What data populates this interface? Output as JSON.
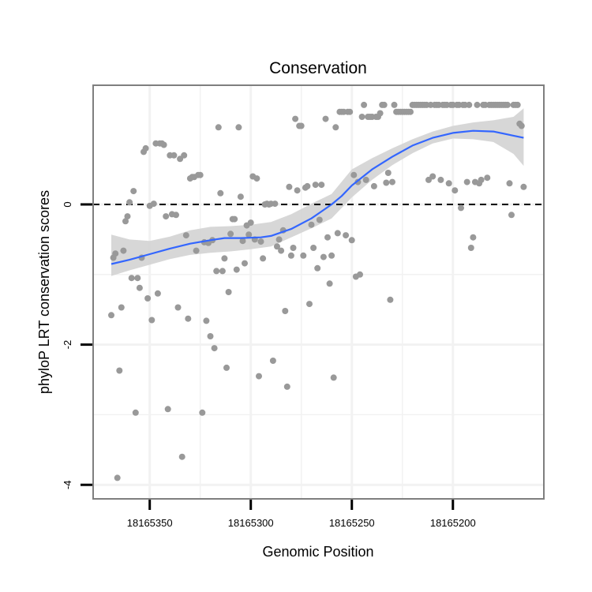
{
  "chart_data": {
    "type": "scatter",
    "title": "Conservation",
    "xlabel": "Genomic Position",
    "ylabel": "phyloP LRT conservation scores",
    "x_reversed": true,
    "xlim": [
      18165378,
      18165155
    ],
    "ylim": [
      -4.2,
      1.7
    ],
    "x_ticks": [
      18165350,
      18165300,
      18165250,
      18165200
    ],
    "x_tick_labels": [
      "18165350",
      "18165300",
      "18165250",
      "18165200"
    ],
    "y_ticks": [
      -4,
      -2,
      0
    ],
    "y_tick_labels": [
      "-4",
      "-2",
      "0"
    ],
    "reference_line": {
      "y": 0,
      "style": "dashed"
    },
    "grid": true,
    "colors": {
      "points": "#999999",
      "smooth_line": "#3366ff",
      "ribbon": "#d3d3d3",
      "panel_border": "#7f7f7f",
      "grid": "#f2f2f2"
    },
    "points": [
      [
        18165369,
        -1.58
      ],
      [
        18165368,
        -0.76
      ],
      [
        18165367,
        -0.7
      ],
      [
        18165366,
        -3.9
      ],
      [
        18165365,
        -2.37
      ],
      [
        18165364,
        -1.47
      ],
      [
        18165363,
        -0.66
      ],
      [
        18165362,
        -0.24
      ],
      [
        18165361,
        -0.17
      ],
      [
        18165360,
        0.03
      ],
      [
        18165359,
        -1.05
      ],
      [
        18165358,
        0.19
      ],
      [
        18165357,
        -2.97
      ],
      [
        18165356,
        -1.05
      ],
      [
        18165355,
        -1.19
      ],
      [
        18165354,
        -0.76
      ],
      [
        18165353,
        0.75
      ],
      [
        18165352,
        0.8
      ],
      [
        18165351,
        -1.34
      ],
      [
        18165350,
        -0.02
      ],
      [
        18165349,
        -1.65
      ],
      [
        18165348,
        0.01
      ],
      [
        18165347,
        0.87
      ],
      [
        18165346,
        -1.27
      ],
      [
        18165345,
        0.87
      ],
      [
        18165344,
        0.87
      ],
      [
        18165343,
        0.85
      ],
      [
        18165342,
        -0.17
      ],
      [
        18165341,
        -2.92
      ],
      [
        18165340,
        0.7
      ],
      [
        18165339,
        -0.14
      ],
      [
        18165338,
        0.7
      ],
      [
        18165337,
        -0.15
      ],
      [
        18165336,
        -1.47
      ],
      [
        18165335,
        0.65
      ],
      [
        18165334,
        -3.6
      ],
      [
        18165333,
        0.7
      ],
      [
        18165332,
        -0.44
      ],
      [
        18165331,
        -1.63
      ],
      [
        18165330,
        0.37
      ],
      [
        18165329,
        0.39
      ],
      [
        18165328,
        0.39
      ],
      [
        18165327,
        -0.66
      ],
      [
        18165326,
        0.42
      ],
      [
        18165325,
        0.42
      ],
      [
        18165324,
        -2.97
      ],
      [
        18165323,
        -0.54
      ],
      [
        18165322,
        -1.66
      ],
      [
        18165321,
        -0.55
      ],
      [
        18165320,
        -1.88
      ],
      [
        18165319,
        -0.51
      ],
      [
        18165318,
        -2.05
      ],
      [
        18165317,
        -0.95
      ],
      [
        18165316,
        1.1
      ],
      [
        18165315,
        0.16
      ],
      [
        18165314,
        -0.95
      ],
      [
        18165313,
        -0.77
      ],
      [
        18165312,
        -2.33
      ],
      [
        18165311,
        -1.25
      ],
      [
        18165310,
        -0.42
      ],
      [
        18165309,
        -0.21
      ],
      [
        18165308,
        -0.21
      ],
      [
        18165307,
        -0.93
      ],
      [
        18165306,
        1.1
      ],
      [
        18165305,
        0.11
      ],
      [
        18165304,
        -0.52
      ],
      [
        18165303,
        -0.84
      ],
      [
        18165302,
        -0.3
      ],
      [
        18165301,
        -0.43
      ],
      [
        18165300,
        -0.26
      ],
      [
        18165299,
        0.4
      ],
      [
        18165298,
        -0.5
      ],
      [
        18165297,
        0.37
      ],
      [
        18165296,
        -2.45
      ],
      [
        18165295,
        -0.53
      ],
      [
        18165294,
        -0.77
      ],
      [
        18165293,
        0
      ],
      [
        18165292,
        0.01
      ],
      [
        18165291,
        0.0
      ],
      [
        18165290,
        0.01
      ],
      [
        18165289,
        -2.23
      ],
      [
        18165288,
        0.01
      ],
      [
        18165287,
        -0.6
      ],
      [
        18165286,
        -0.5
      ],
      [
        18165285,
        -0.66
      ],
      [
        18165284,
        -0.37
      ],
      [
        18165283,
        -1.52
      ],
      [
        18165282,
        -2.6
      ],
      [
        18165281,
        0.25
      ],
      [
        18165280,
        -0.73
      ],
      [
        18165279,
        -0.62
      ],
      [
        18165278,
        1.22
      ],
      [
        18165277,
        0.2
      ],
      [
        18165276,
        1.12
      ],
      [
        18165275,
        1.12
      ],
      [
        18165274,
        -0.73
      ],
      [
        18165273,
        0.24
      ],
      [
        18165272,
        0.26
      ],
      [
        18165271,
        -1.42
      ],
      [
        18165270,
        -0.29
      ],
      [
        18165269,
        -0.62
      ],
      [
        18165268,
        0.28
      ],
      [
        18165267,
        -0.91
      ],
      [
        18165266,
        -0.22
      ],
      [
        18165265,
        0.28
      ],
      [
        18165264,
        -0.75
      ],
      [
        18165263,
        1.22
      ],
      [
        18165262,
        -0.47
      ],
      [
        18165261,
        -1.13
      ],
      [
        18165260,
        -0.73
      ],
      [
        18165259,
        -2.47
      ],
      [
        18165258,
        1.1
      ],
      [
        18165257,
        -0.41
      ],
      [
        18165256,
        1.32
      ],
      [
        18165255,
        1.32
      ],
      [
        18165254,
        1.32
      ],
      [
        18165253,
        -0.44
      ],
      [
        18165252,
        1.32
      ],
      [
        18165251,
        1.32
      ],
      [
        18165250,
        -0.51
      ],
      [
        18165249,
        0.42
      ],
      [
        18165248,
        -1.03
      ],
      [
        18165247,
        0.32
      ],
      [
        18165246,
        -1.0
      ],
      [
        18165245,
        1.25
      ],
      [
        18165244,
        1.42
      ],
      [
        18165243,
        0.35
      ],
      [
        18165242,
        1.25
      ],
      [
        18165241,
        1.25
      ],
      [
        18165240,
        1.25
      ],
      [
        18165239,
        0.26
      ],
      [
        18165238,
        1.25
      ],
      [
        18165237,
        1.25
      ],
      [
        18165236,
        1.3
      ],
      [
        18165235,
        1.42
      ],
      [
        18165234,
        1.42
      ],
      [
        18165233,
        0.31
      ],
      [
        18165232,
        0.45
      ],
      [
        18165231,
        -1.36
      ],
      [
        18165230,
        0.32
      ],
      [
        18165229,
        1.42
      ],
      [
        18165228,
        1.32
      ],
      [
        18165227,
        1.32
      ],
      [
        18165226,
        1.32
      ],
      [
        18165225,
        1.32
      ],
      [
        18165224,
        1.32
      ],
      [
        18165223,
        1.32
      ],
      [
        18165222,
        1.32
      ],
      [
        18165221,
        1.32
      ],
      [
        18165220,
        1.42
      ],
      [
        18165219,
        1.42
      ],
      [
        18165218,
        1.42
      ],
      [
        18165217,
        1.42
      ],
      [
        18165216,
        1.42
      ],
      [
        18165215,
        1.42
      ],
      [
        18165214,
        1.42
      ],
      [
        18165213,
        1.42
      ],
      [
        18165212,
        0.35
      ],
      [
        18165211,
        1.42
      ],
      [
        18165210,
        0.4
      ],
      [
        18165209,
        1.42
      ],
      [
        18165208,
        1.42
      ],
      [
        18165207,
        1.42
      ],
      [
        18165206,
        0.35
      ],
      [
        18165205,
        1.42
      ],
      [
        18165204,
        1.42
      ],
      [
        18165203,
        1.42
      ],
      [
        18165202,
        0.3
      ],
      [
        18165201,
        1.42
      ],
      [
        18165200,
        1.42
      ],
      [
        18165199,
        0.2
      ],
      [
        18165198,
        1.42
      ],
      [
        18165197,
        1.42
      ],
      [
        18165196,
        -0.05
      ],
      [
        18165195,
        1.42
      ],
      [
        18165194,
        1.42
      ],
      [
        18165193,
        0.32
      ],
      [
        18165192,
        1.42
      ],
      [
        18165191,
        -0.62
      ],
      [
        18165190,
        -0.47
      ],
      [
        18165189,
        0.32
      ],
      [
        18165188,
        1.42
      ],
      [
        18165187,
        0.3
      ],
      [
        18165186,
        0.35
      ],
      [
        18165185,
        1.42
      ],
      [
        18165184,
        1.42
      ],
      [
        18165183,
        0.38
      ],
      [
        18165182,
        1.42
      ],
      [
        18165181,
        1.42
      ],
      [
        18165180,
        1.42
      ],
      [
        18165179,
        1.42
      ],
      [
        18165178,
        1.42
      ],
      [
        18165177,
        1.42
      ],
      [
        18165176,
        1.42
      ],
      [
        18165175,
        1.42
      ],
      [
        18165174,
        1.42
      ],
      [
        18165173,
        1.42
      ],
      [
        18165172,
        0.3
      ],
      [
        18165171,
        -0.15
      ],
      [
        18165170,
        1.42
      ],
      [
        18165169,
        1.42
      ],
      [
        18165168,
        1.42
      ],
      [
        18165167,
        1.15
      ],
      [
        18165166,
        1.12
      ],
      [
        18165165,
        0.25
      ]
    ],
    "smooth_line": [
      [
        18165369,
        -0.85
      ],
      [
        18165360,
        -0.79
      ],
      [
        18165350,
        -0.71
      ],
      [
        18165340,
        -0.63
      ],
      [
        18165330,
        -0.56
      ],
      [
        18165320,
        -0.51
      ],
      [
        18165313,
        -0.48
      ],
      [
        18165305,
        -0.48
      ],
      [
        18165295,
        -0.47
      ],
      [
        18165290,
        -0.45
      ],
      [
        18165280,
        -0.35
      ],
      [
        18165270,
        -0.2
      ],
      [
        18165265,
        -0.1
      ],
      [
        18165260,
        0.0
      ],
      [
        18165255,
        0.12
      ],
      [
        18165250,
        0.27
      ],
      [
        18165240,
        0.5
      ],
      [
        18165230,
        0.68
      ],
      [
        18165220,
        0.84
      ],
      [
        18165210,
        0.95
      ],
      [
        18165200,
        1.02
      ],
      [
        18165190,
        1.05
      ],
      [
        18165180,
        1.04
      ],
      [
        18165170,
        0.98
      ],
      [
        18165165,
        0.95
      ]
    ],
    "ribbon_upper": [
      [
        18165369,
        -0.43
      ],
      [
        18165360,
        -0.5
      ],
      [
        18165350,
        -0.52
      ],
      [
        18165340,
        -0.46
      ],
      [
        18165330,
        -0.37
      ],
      [
        18165320,
        -0.32
      ],
      [
        18165310,
        -0.31
      ],
      [
        18165300,
        -0.29
      ],
      [
        18165290,
        -0.25
      ],
      [
        18165280,
        -0.14
      ],
      [
        18165270,
        0.01
      ],
      [
        18165260,
        0.15
      ],
      [
        18165250,
        0.5
      ],
      [
        18165240,
        0.66
      ],
      [
        18165230,
        0.8
      ],
      [
        18165220,
        0.93
      ],
      [
        18165210,
        1.04
      ],
      [
        18165200,
        1.12
      ],
      [
        18165190,
        1.17
      ],
      [
        18165180,
        1.2
      ],
      [
        18165170,
        1.25
      ],
      [
        18165165,
        1.37
      ]
    ],
    "ribbon_lower": [
      [
        18165369,
        -1.02
      ],
      [
        18165360,
        -0.94
      ],
      [
        18165350,
        -0.86
      ],
      [
        18165340,
        -0.78
      ],
      [
        18165330,
        -0.72
      ],
      [
        18165320,
        -0.69
      ],
      [
        18165310,
        -0.67
      ],
      [
        18165300,
        -0.64
      ],
      [
        18165290,
        -0.6
      ],
      [
        18165280,
        -0.47
      ],
      [
        18165270,
        -0.34
      ],
      [
        18165260,
        -0.2
      ],
      [
        18165250,
        0.1
      ],
      [
        18165240,
        0.35
      ],
      [
        18165230,
        0.56
      ],
      [
        18165220,
        0.73
      ],
      [
        18165210,
        0.87
      ],
      [
        18165200,
        0.94
      ],
      [
        18165190,
        0.93
      ],
      [
        18165180,
        0.89
      ],
      [
        18165170,
        0.72
      ],
      [
        18165165,
        0.55
      ]
    ]
  }
}
